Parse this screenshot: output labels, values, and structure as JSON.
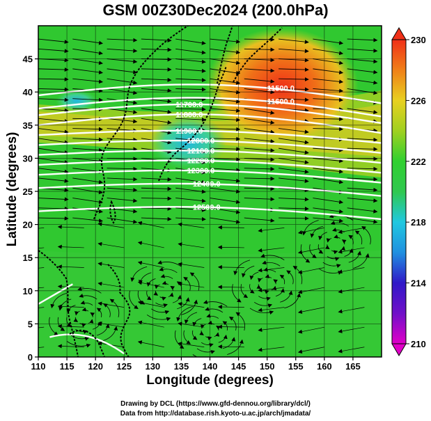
{
  "title": "GSM 00Z30Dec2024 (200.0hPa)",
  "credits": {
    "line1": "Drawing by DCL (https://www.gfd-dennou.org/library/dcl/)",
    "line2": "Data from http://database.rish.kyoto-u.ac.jp/arch/jmadata/"
  },
  "chart_data": {
    "type": "heatmap",
    "title": "GSM 00Z30Dec2024 (200.0hPa)",
    "xlabel": "Longitude (degrees)",
    "ylabel": "Latitude  (degrees)",
    "xlim": [
      110,
      170
    ],
    "ylim": [
      0,
      50
    ],
    "x_ticks": [
      110,
      115,
      120,
      125,
      130,
      135,
      140,
      145,
      150,
      155,
      160,
      165
    ],
    "y_ticks": [
      0,
      5,
      10,
      15,
      20,
      25,
      30,
      35,
      40,
      45
    ],
    "grid": true,
    "colorbar": {
      "min": 210,
      "max": 230,
      "ticks": [
        210,
        214,
        218,
        222,
        226,
        230
      ],
      "colors": [
        "#e000c8",
        "#3018c8",
        "#20c8e0",
        "#30d030",
        "#e8d020",
        "#f03018"
      ]
    },
    "contour_labels": [
      "11500.0",
      "11600.0",
      "11700.0",
      "11800.0",
      "11900.0",
      "12000.0",
      "12100.0",
      "12200.0",
      "12300.0",
      "12400.0",
      "12500.0"
    ],
    "colors": {
      "land_outline": "#000000",
      "contour": "#ffffff",
      "streamline": "#000000"
    }
  }
}
